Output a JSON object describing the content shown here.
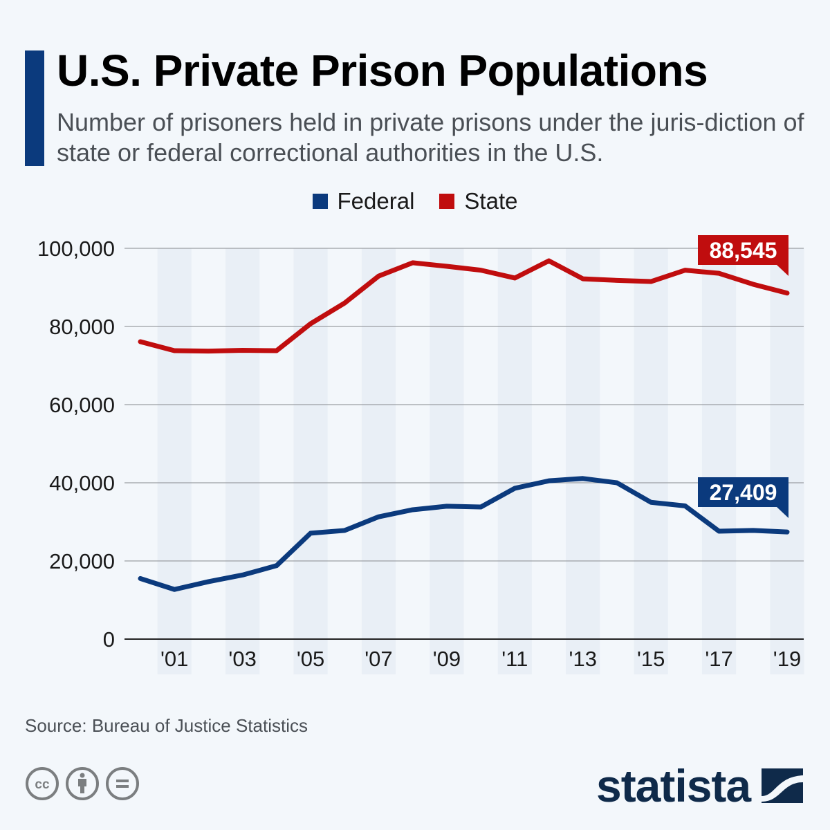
{
  "header": {
    "title": "U.S. Private Prison Populations",
    "subtitle": "Number of prisoners held in private prisons under the juris-diction of state or federal correctional authorities in the U.S."
  },
  "legend": [
    {
      "label": "Federal",
      "color": "#0b3a7d"
    },
    {
      "label": "State",
      "color": "#c00d0e"
    }
  ],
  "footer": {
    "source": "Source: Bureau of Justice Statistics",
    "license_icons": [
      "cc-icon",
      "attribution-icon",
      "no-derivatives-icon"
    ],
    "brand": "statista"
  },
  "chart_data": {
    "type": "line",
    "title": "U.S. Private Prison Populations",
    "xlabel": "",
    "ylabel": "",
    "x": [
      2000,
      2001,
      2002,
      2003,
      2004,
      2005,
      2006,
      2007,
      2008,
      2009,
      2010,
      2011,
      2012,
      2013,
      2014,
      2015,
      2016,
      2017,
      2018,
      2019
    ],
    "x_tick_labels": [
      "'01",
      "'03",
      "'05",
      "'07",
      "'09",
      "'11",
      "'13",
      "'15",
      "'17",
      "'19"
    ],
    "x_tick_values": [
      2001,
      2003,
      2005,
      2007,
      2009,
      2011,
      2013,
      2015,
      2017,
      2019
    ],
    "y_ticks": [
      0,
      20000,
      40000,
      60000,
      80000,
      100000
    ],
    "y_tick_labels": [
      "0",
      "20,000",
      "40,000",
      "60,000",
      "80,000",
      "100,000"
    ],
    "ylim": [
      0,
      100000
    ],
    "grid": "horizontal",
    "shaded_bands": "odd years",
    "legend_position": "top-center",
    "series": [
      {
        "name": "Federal",
        "color": "#0b3a7d",
        "values": [
          15500,
          12700,
          14700,
          16400,
          18800,
          27100,
          27800,
          31300,
          33100,
          34000,
          33800,
          38600,
          40500,
          41100,
          40000,
          35000,
          34100,
          27600,
          27800,
          27409
        ],
        "end_label": "27,409"
      },
      {
        "name": "State",
        "color": "#c00d0e",
        "values": [
          76100,
          73800,
          73700,
          73900,
          73800,
          80700,
          86000,
          92900,
          96300,
          95400,
          94400,
          92400,
          96800,
          92200,
          91800,
          91500,
          94400,
          93600,
          90800,
          88545
        ],
        "end_label": "88,545"
      }
    ]
  }
}
